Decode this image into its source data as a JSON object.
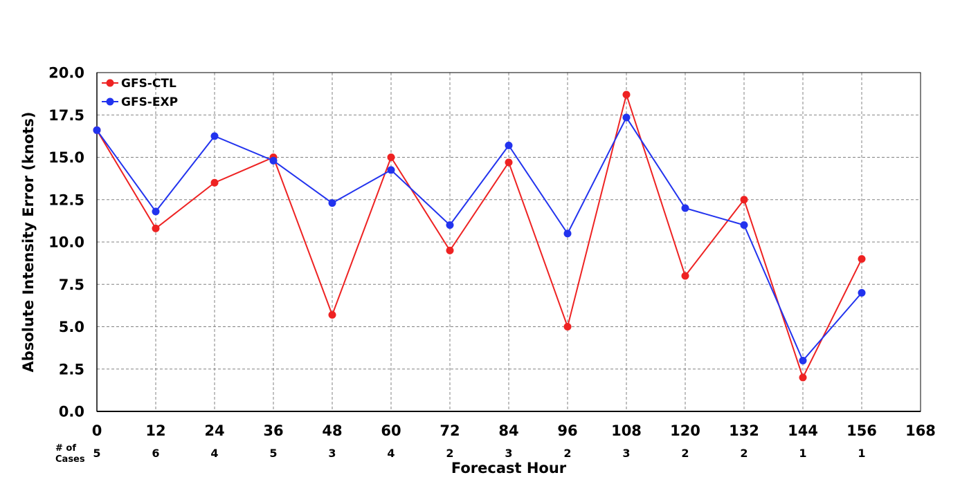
{
  "chart_data": {
    "type": "line",
    "title": "",
    "xlabel": "Forecast Hour",
    "ylabel": "Absolute Intensity Error (knots)",
    "xlim": [
      0,
      168
    ],
    "ylim": [
      0,
      20
    ],
    "x_ticks": [
      0,
      12,
      24,
      36,
      48,
      60,
      72,
      84,
      96,
      108,
      120,
      132,
      144,
      156,
      168
    ],
    "y_ticks": [
      "0.0",
      "2.5",
      "5.0",
      "7.5",
      "10.0",
      "12.5",
      "15.0",
      "17.5",
      "20.0"
    ],
    "grid": true,
    "legend_position": "top-left",
    "cases_label": [
      "# of",
      "Cases"
    ],
    "cases_hours": [
      0,
      12,
      24,
      36,
      48,
      60,
      72,
      84,
      96,
      108,
      120,
      132,
      144,
      156
    ],
    "cases": [
      5,
      6,
      4,
      5,
      3,
      4,
      2,
      3,
      2,
      3,
      2,
      2,
      1,
      1
    ],
    "series": [
      {
        "name": "GFS-CTL",
        "color": "#ee2222",
        "x": [
          0,
          12,
          24,
          36,
          48,
          60,
          72,
          84,
          96,
          108,
          120,
          132,
          144,
          156
        ],
        "values": [
          16.6,
          10.8,
          13.5,
          15.0,
          5.7,
          15.0,
          9.5,
          14.7,
          5.0,
          18.7,
          8.0,
          12.5,
          2.0,
          9.0
        ]
      },
      {
        "name": "GFS-EXP",
        "color": "#2233ee",
        "x": [
          0,
          12,
          24,
          36,
          48,
          60,
          72,
          84,
          96,
          108,
          120,
          132,
          144,
          156
        ],
        "values": [
          16.6,
          11.8,
          16.25,
          14.8,
          12.3,
          14.25,
          11.0,
          15.7,
          10.5,
          17.35,
          12.0,
          11.0,
          3.0,
          7.0
        ]
      }
    ]
  }
}
